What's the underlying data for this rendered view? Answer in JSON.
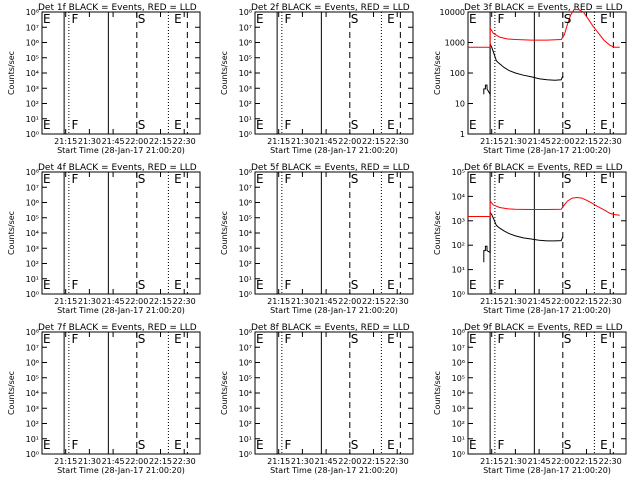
{
  "chart_data": [
    {
      "type": "line",
      "title": "Det 1f BLACK = Events, RED = LLD",
      "ylabel": "Counts/sec",
      "xlabel": "Start Time (28-Jan-17 21:00:20)",
      "yscale": "log",
      "ylim": [
        1,
        100000000.0
      ],
      "y_ticks": [
        "10⁰",
        "10¹",
        "10²",
        "10³",
        "10⁴",
        "10⁵",
        "10⁶",
        "10⁷",
        "10⁸"
      ],
      "x_ticks": [
        "21:15",
        "21:30",
        "21:45",
        "22:00",
        "22:15",
        "22:30"
      ],
      "xlim": [
        "21:00",
        "22:40"
      ],
      "markers": [
        {
          "label": "E",
          "time": "21:00"
        },
        {
          "label": "F",
          "time": "21:18"
        },
        {
          "label": "S",
          "time": "22:00"
        },
        {
          "label": "E",
          "time": "22:23"
        }
      ],
      "lines": {
        "solid": [
          "21:14",
          "21:42"
        ],
        "dashed": [
          "22:00",
          "22:32"
        ],
        "dotted": [
          "21:17",
          "22:20"
        ]
      },
      "series": []
    },
    {
      "type": "line",
      "title": "Det 2f BLACK = Events, RED = LLD",
      "ylabel": "Counts/sec",
      "xlabel": "Start Time (28-Jan-17 21:00:20)",
      "yscale": "log",
      "ylim": [
        1,
        100000000.0
      ],
      "y_ticks": [
        "10⁰",
        "10¹",
        "10²",
        "10³",
        "10⁴",
        "10⁵",
        "10⁶",
        "10⁷",
        "10⁸"
      ],
      "x_ticks": [
        "21:15",
        "21:30",
        "21:45",
        "22:00",
        "22:15",
        "22:30"
      ],
      "xlim": [
        "21:00",
        "22:40"
      ],
      "markers": [
        {
          "label": "E",
          "time": "21:00"
        },
        {
          "label": "F",
          "time": "21:18"
        },
        {
          "label": "S",
          "time": "22:00"
        },
        {
          "label": "E",
          "time": "22:23"
        }
      ],
      "lines": {
        "solid": [
          "21:14",
          "21:42"
        ],
        "dashed": [
          "22:00",
          "22:32"
        ],
        "dotted": [
          "21:17",
          "22:20"
        ]
      },
      "series": []
    },
    {
      "type": "line",
      "title": "Det 3f BLACK = Events, RED = LLD",
      "ylabel": "Counts/sec",
      "xlabel": "Start Time (28-Jan-17 21:00:20)",
      "yscale": "log",
      "ylim": [
        1,
        10000
      ],
      "y_ticks": [
        "1",
        "10",
        "100",
        "1000",
        "10000"
      ],
      "x_ticks": [
        "21:15",
        "21:30",
        "21:45",
        "22:00",
        "22:15",
        "22:30"
      ],
      "xlim": [
        "21:00",
        "22:40"
      ],
      "markers": [
        {
          "label": "E",
          "time": "21:00"
        },
        {
          "label": "F",
          "time": "21:18"
        },
        {
          "label": "S",
          "time": "22:00"
        },
        {
          "label": "E",
          "time": "22:23"
        }
      ],
      "lines": {
        "solid": [
          "21:14",
          "21:42"
        ],
        "dashed": [
          "22:00",
          "22:32"
        ],
        "dotted": [
          "21:17",
          "22:20"
        ]
      },
      "series": [
        {
          "color": "#000000",
          "points": [
            [
              "21:10",
              20
            ],
            [
              "21:10",
              30
            ],
            [
              "21:11",
              30
            ],
            [
              "21:11",
              40
            ],
            [
              "21:12",
              40
            ],
            [
              "21:12",
              30
            ],
            [
              "21:14",
              20
            ],
            [
              "21:14",
              900
            ],
            [
              "21:15",
              700
            ],
            [
              "21:16",
              500
            ],
            [
              "21:17",
              350
            ],
            [
              "21:18",
              250
            ],
            [
              "21:20",
              200
            ],
            [
              "21:23",
              150
            ],
            [
              "21:26",
              120
            ],
            [
              "21:30",
              100
            ],
            [
              "21:35",
              85
            ],
            [
              "21:40",
              75
            ],
            [
              "21:45",
              65
            ],
            [
              "21:50",
              60
            ],
            [
              "21:55",
              58
            ],
            [
              "21:59",
              60
            ],
            [
              "22:00",
              80
            ]
          ]
        },
        {
          "color": "#ff0000",
          "points": [
            [
              "21:00",
              700
            ],
            [
              "21:14",
              700
            ],
            [
              "21:14",
              3000
            ],
            [
              "21:16",
              2000
            ],
            [
              "21:20",
              1500
            ],
            [
              "21:25",
              1300
            ],
            [
              "21:30",
              1250
            ],
            [
              "21:40",
              1200
            ],
            [
              "21:50",
              1200
            ],
            [
              "21:59",
              1250
            ],
            [
              "22:01",
              1800
            ],
            [
              "22:03",
              4000
            ],
            [
              "22:05",
              8000
            ],
            [
              "22:07",
              12000
            ],
            [
              "22:10",
              12000
            ],
            [
              "22:13",
              10000
            ],
            [
              "22:16",
              6000
            ],
            [
              "22:19",
              3500
            ],
            [
              "22:22",
              2200
            ],
            [
              "22:26",
              1200
            ],
            [
              "22:30",
              800
            ],
            [
              "22:33",
              700
            ],
            [
              "22:36",
              700
            ]
          ]
        }
      ]
    },
    {
      "type": "line",
      "title": "Det 4f BLACK = Events, RED = LLD",
      "ylabel": "Counts/sec",
      "xlabel": "Start Time (28-Jan-17 21:00:20)",
      "yscale": "log",
      "ylim": [
        1,
        100000000.0
      ],
      "y_ticks": [
        "10⁰",
        "10¹",
        "10²",
        "10³",
        "10⁴",
        "10⁵",
        "10⁶",
        "10⁷",
        "10⁸"
      ],
      "x_ticks": [
        "21:15",
        "21:30",
        "21:45",
        "22:00",
        "22:15",
        "22:30"
      ],
      "xlim": [
        "21:00",
        "22:40"
      ],
      "markers": [
        {
          "label": "E",
          "time": "21:00"
        },
        {
          "label": "F",
          "time": "21:18"
        },
        {
          "label": "S",
          "time": "22:00"
        },
        {
          "label": "E",
          "time": "22:23"
        }
      ],
      "lines": {
        "solid": [
          "21:14",
          "21:42"
        ],
        "dashed": [
          "22:00",
          "22:32"
        ],
        "dotted": [
          "21:17",
          "22:20"
        ]
      },
      "series": []
    },
    {
      "type": "line",
      "title": "Det 5f BLACK = Events, RED = LLD",
      "ylabel": "Counts/sec",
      "xlabel": "Start Time (28-Jan-17 21:00:20)",
      "yscale": "log",
      "ylim": [
        1,
        100000000.0
      ],
      "y_ticks": [
        "10⁰",
        "10¹",
        "10²",
        "10³",
        "10⁴",
        "10⁵",
        "10⁶",
        "10⁷",
        "10⁸"
      ],
      "x_ticks": [
        "21:15",
        "21:30",
        "21:45",
        "22:00",
        "22:15",
        "22:30"
      ],
      "xlim": [
        "21:00",
        "22:40"
      ],
      "markers": [
        {
          "label": "E",
          "time": "21:00"
        },
        {
          "label": "F",
          "time": "21:18"
        },
        {
          "label": "S",
          "time": "22:00"
        },
        {
          "label": "E",
          "time": "22:23"
        }
      ],
      "lines": {
        "solid": [
          "21:14",
          "21:42"
        ],
        "dashed": [
          "22:00",
          "22:32"
        ],
        "dotted": [
          "21:17",
          "22:20"
        ]
      },
      "series": []
    },
    {
      "type": "line",
      "title": "Det 6f BLACK = Events, RED = LLD",
      "ylabel": "Counts/sec",
      "xlabel": "Start Time (28-Jan-17 21:00:20)",
      "yscale": "log",
      "ylim": [
        1,
        100000
      ],
      "y_ticks": [
        "10⁰",
        "10¹",
        "10²",
        "10³",
        "10⁴",
        "10⁵"
      ],
      "x_ticks": [
        "21:15",
        "21:30",
        "21:45",
        "22:00",
        "22:15",
        "22:30"
      ],
      "xlim": [
        "21:00",
        "22:40"
      ],
      "markers": [
        {
          "label": "E",
          "time": "21:00"
        },
        {
          "label": "F",
          "time": "21:18"
        },
        {
          "label": "S",
          "time": "22:00"
        },
        {
          "label": "E",
          "time": "22:23"
        }
      ],
      "lines": {
        "solid": [
          "21:14",
          "21:42"
        ],
        "dashed": [
          "22:00",
          "22:32"
        ],
        "dotted": [
          "21:17",
          "22:20"
        ]
      },
      "series": [
        {
          "color": "#000000",
          "points": [
            [
              "21:10",
              20
            ],
            [
              "21:10",
              60
            ],
            [
              "21:11",
              60
            ],
            [
              "21:11",
              90
            ],
            [
              "21:12",
              90
            ],
            [
              "21:12",
              60
            ],
            [
              "21:14",
              50
            ],
            [
              "21:14",
              2200
            ],
            [
              "21:15",
              1800
            ],
            [
              "21:16",
              1300
            ],
            [
              "21:17",
              900
            ],
            [
              "21:18",
              650
            ],
            [
              "21:20",
              500
            ],
            [
              "21:23",
              380
            ],
            [
              "21:26",
              300
            ],
            [
              "21:30",
              240
            ],
            [
              "21:35",
              200
            ],
            [
              "21:40",
              180
            ],
            [
              "21:45",
              160
            ],
            [
              "21:50",
              150
            ],
            [
              "21:55",
              150
            ],
            [
              "21:59",
              155
            ],
            [
              "22:00",
              220
            ]
          ]
        },
        {
          "color": "#ff0000",
          "points": [
            [
              "21:00",
              1500
            ],
            [
              "21:14",
              1500
            ],
            [
              "21:14",
              6500
            ],
            [
              "21:16",
              4500
            ],
            [
              "21:20",
              3500
            ],
            [
              "21:25",
              3100
            ],
            [
              "21:30",
              3000
            ],
            [
              "21:40",
              2900
            ],
            [
              "21:50",
              2900
            ],
            [
              "21:59",
              3000
            ],
            [
              "22:01",
              4500
            ],
            [
              "22:03",
              6500
            ],
            [
              "22:06",
              8500
            ],
            [
              "22:09",
              9000
            ],
            [
              "22:12",
              8500
            ],
            [
              "22:15",
              7000
            ],
            [
              "22:18",
              5500
            ],
            [
              "22:21",
              4200
            ],
            [
              "22:24",
              3300
            ],
            [
              "22:27",
              2600
            ],
            [
              "22:30",
              2000
            ],
            [
              "22:33",
              1800
            ],
            [
              "22:36",
              1700
            ]
          ]
        }
      ]
    },
    {
      "type": "line",
      "title": "Det 7f BLACK = Events, RED = LLD",
      "ylabel": "Counts/sec",
      "xlabel": "Start Time (28-Jan-17 21:00:20)",
      "yscale": "log",
      "ylim": [
        1,
        100000000.0
      ],
      "y_ticks": [
        "10⁰",
        "10¹",
        "10²",
        "10³",
        "10⁴",
        "10⁵",
        "10⁶",
        "10⁷",
        "10⁸"
      ],
      "x_ticks": [
        "21:15",
        "21:30",
        "21:45",
        "22:00",
        "22:15",
        "22:30"
      ],
      "xlim": [
        "21:00",
        "22:40"
      ],
      "markers": [
        {
          "label": "E",
          "time": "21:00"
        },
        {
          "label": "F",
          "time": "21:18"
        },
        {
          "label": "S",
          "time": "22:00"
        },
        {
          "label": "E",
          "time": "22:23"
        }
      ],
      "lines": {
        "solid": [
          "21:14",
          "21:42"
        ],
        "dashed": [
          "22:00",
          "22:32"
        ],
        "dotted": [
          "21:17",
          "22:20"
        ]
      },
      "series": []
    },
    {
      "type": "line",
      "title": "Det 8f BLACK = Events, RED = LLD",
      "ylabel": "Counts/sec",
      "xlabel": "Start Time (28-Jan-17 21:00:20)",
      "yscale": "log",
      "ylim": [
        1,
        100000000.0
      ],
      "y_ticks": [
        "10⁰",
        "10¹",
        "10²",
        "10³",
        "10⁴",
        "10⁵",
        "10⁶",
        "10⁷",
        "10⁸"
      ],
      "x_ticks": [
        "21:15",
        "21:30",
        "21:45",
        "22:00",
        "22:15",
        "22:30"
      ],
      "xlim": [
        "21:00",
        "22:40"
      ],
      "markers": [
        {
          "label": "E",
          "time": "21:00"
        },
        {
          "label": "F",
          "time": "21:18"
        },
        {
          "label": "S",
          "time": "22:00"
        },
        {
          "label": "E",
          "time": "22:23"
        }
      ],
      "lines": {
        "solid": [
          "21:14",
          "21:42"
        ],
        "dashed": [
          "22:00",
          "22:32"
        ],
        "dotted": [
          "21:17",
          "22:20"
        ]
      },
      "series": []
    },
    {
      "type": "line",
      "title": "Det 9f BLACK = Events, RED = LLD",
      "ylabel": "Counts/sec",
      "xlabel": "Start Time (28-Jan-17 21:00:20)",
      "yscale": "log",
      "ylim": [
        1,
        100000000.0
      ],
      "y_ticks": [
        "10⁰",
        "10¹",
        "10²",
        "10³",
        "10⁴",
        "10⁵",
        "10⁶",
        "10⁷",
        "10⁸"
      ],
      "x_ticks": [
        "21:15",
        "21:30",
        "21:45",
        "22:00",
        "22:15",
        "22:30"
      ],
      "xlim": [
        "21:00",
        "22:40"
      ],
      "markers": [
        {
          "label": "E",
          "time": "21:00"
        },
        {
          "label": "F",
          "time": "21:18"
        },
        {
          "label": "S",
          "time": "22:00"
        },
        {
          "label": "E",
          "time": "22:23"
        }
      ],
      "lines": {
        "solid": [
          "21:14",
          "21:42"
        ],
        "dashed": [
          "22:00",
          "22:32"
        ],
        "dotted": [
          "21:17",
          "22:20"
        ]
      },
      "series": []
    }
  ]
}
